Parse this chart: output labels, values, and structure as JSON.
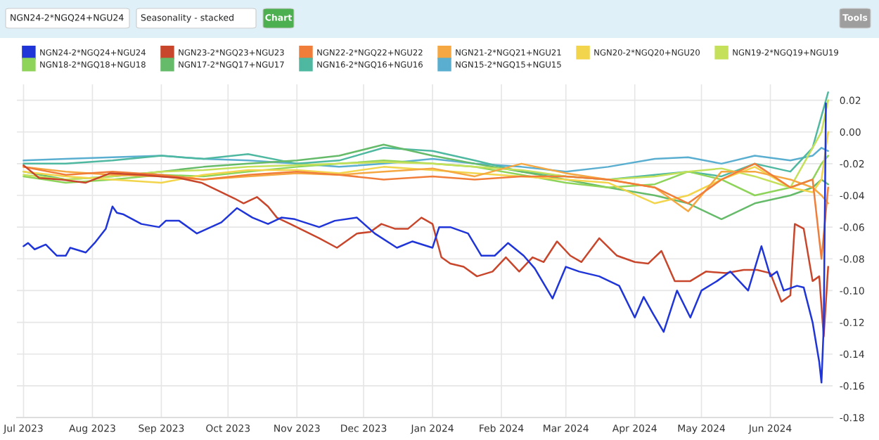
{
  "chart_data": {
    "type": "line",
    "annotations": [
      "NGN24-2*NGQ24+NGU24",
      "Seasonality - stacked",
      "Chart",
      "Tools"
    ],
    "x": [
      "2023-07-01",
      "2023-07-20",
      "2023-08-10",
      "2023-09-01",
      "2023-09-20",
      "2023-10-10",
      "2023-11-01",
      "2023-11-20",
      "2023-12-10",
      "2024-01-01",
      "2024-01-20",
      "2024-02-10",
      "2024-03-01",
      "2024-03-20",
      "2024-04-10",
      "2024-04-25",
      "2024-05-10",
      "2024-05-25",
      "2024-06-10",
      "2024-06-20",
      "2024-06-24",
      "2024-06-27"
    ],
    "series": [
      {
        "name": "NGN24-2*NGQ24+NGU24",
        "color": "#1f35d8",
        "x": [
          "2023-07-01",
          "2023-07-03",
          "2023-07-06",
          "2023-07-11",
          "2023-07-16",
          "2023-07-20",
          "2023-07-22",
          "2023-07-29",
          "2023-08-02",
          "2023-08-07",
          "2023-08-10",
          "2023-08-12",
          "2023-08-15",
          "2023-08-23",
          "2023-08-31",
          "2023-09-03",
          "2023-09-09",
          "2023-09-17",
          "2023-09-28",
          "2023-10-05",
          "2023-10-12",
          "2023-10-19",
          "2023-10-25",
          "2023-10-31",
          "2023-11-11",
          "2023-11-18",
          "2023-11-28",
          "2023-12-06",
          "2023-12-16",
          "2023-12-23",
          "2024-01-01",
          "2024-01-04",
          "2024-01-09",
          "2024-01-17",
          "2024-01-23",
          "2024-01-29",
          "2024-02-04",
          "2024-02-11",
          "2024-02-16",
          "2024-02-24",
          "2024-03-01",
          "2024-03-07",
          "2024-03-16",
          "2024-03-25",
          "2024-04-01",
          "2024-04-05",
          "2024-04-09",
          "2024-04-14",
          "2024-04-20",
          "2024-04-26",
          "2024-05-01",
          "2024-05-08",
          "2024-05-14",
          "2024-05-22",
          "2024-05-28",
          "2024-06-01",
          "2024-06-04",
          "2024-06-07",
          "2024-06-13",
          "2024-06-16",
          "2024-06-20",
          "2024-06-23",
          "2024-06-24",
          "2024-06-25",
          "2024-06-26"
        ],
        "values": [
          -0.072,
          -0.07,
          -0.074,
          -0.071,
          -0.078,
          -0.078,
          -0.073,
          -0.076,
          -0.07,
          -0.061,
          -0.047,
          -0.051,
          -0.052,
          -0.058,
          -0.06,
          -0.056,
          -0.056,
          -0.064,
          -0.057,
          -0.048,
          -0.054,
          -0.058,
          -0.054,
          -0.055,
          -0.06,
          -0.056,
          -0.054,
          -0.064,
          -0.073,
          -0.069,
          -0.073,
          -0.06,
          -0.06,
          -0.064,
          -0.078,
          -0.078,
          -0.07,
          -0.078,
          -0.086,
          -0.105,
          -0.085,
          -0.088,
          -0.091,
          -0.097,
          -0.117,
          -0.104,
          -0.114,
          -0.126,
          -0.1,
          -0.117,
          -0.1,
          -0.094,
          -0.088,
          -0.1,
          -0.072,
          -0.091,
          -0.088,
          -0.1,
          -0.097,
          -0.098,
          -0.12,
          -0.145,
          -0.158,
          -0.123,
          0.018
        ]
      },
      {
        "name": "NGN23-2*NGQ23+NGU23",
        "color": "#c8462b",
        "x": [
          "2023-07-01",
          "2023-07-08",
          "2023-07-18",
          "2023-07-29",
          "2023-08-09",
          "2023-08-23",
          "2023-09-09",
          "2023-09-19",
          "2023-09-25",
          "2023-10-04",
          "2023-10-08",
          "2023-10-14",
          "2023-10-19",
          "2023-10-23",
          "2023-10-29",
          "2023-11-11",
          "2023-11-19",
          "2023-11-28",
          "2023-12-04",
          "2023-12-09",
          "2023-12-15",
          "2023-12-21",
          "2023-12-27",
          "2024-01-01",
          "2024-01-05",
          "2024-01-09",
          "2024-01-15",
          "2024-01-21",
          "2024-01-28",
          "2024-02-03",
          "2024-02-09",
          "2024-02-15",
          "2024-02-20",
          "2024-02-26",
          "2024-03-03",
          "2024-03-08",
          "2024-03-16",
          "2024-03-24",
          "2024-04-01",
          "2024-04-07",
          "2024-04-13",
          "2024-04-19",
          "2024-04-26",
          "2024-05-03",
          "2024-05-12",
          "2024-05-20",
          "2024-05-26",
          "2024-06-01",
          "2024-06-06",
          "2024-06-10",
          "2024-06-12",
          "2024-06-16",
          "2024-06-20",
          "2024-06-23",
          "2024-06-25",
          "2024-06-27"
        ],
        "values": [
          -0.021,
          -0.029,
          -0.03,
          -0.032,
          -0.026,
          -0.027,
          -0.029,
          -0.032,
          -0.036,
          -0.042,
          -0.045,
          -0.041,
          -0.047,
          -0.054,
          -0.058,
          -0.067,
          -0.073,
          -0.064,
          -0.063,
          -0.058,
          -0.061,
          -0.061,
          -0.054,
          -0.058,
          -0.079,
          -0.083,
          -0.085,
          -0.091,
          -0.088,
          -0.079,
          -0.088,
          -0.079,
          -0.082,
          -0.069,
          -0.078,
          -0.082,
          -0.067,
          -0.078,
          -0.082,
          -0.083,
          -0.075,
          -0.094,
          -0.094,
          -0.088,
          -0.089,
          -0.087,
          -0.087,
          -0.089,
          -0.107,
          -0.103,
          -0.058,
          -0.061,
          -0.094,
          -0.091,
          -0.129,
          -0.085
        ]
      },
      {
        "name": "NGN22-2*NGQ22+NGU22",
        "color": "#f07d3a",
        "values": [
          -0.022,
          -0.027,
          -0.025,
          -0.027,
          -0.03,
          -0.027,
          -0.025,
          -0.027,
          -0.03,
          -0.028,
          -0.03,
          -0.028,
          -0.028,
          -0.03,
          -0.035,
          -0.045,
          -0.03,
          -0.02,
          -0.035,
          -0.03,
          -0.08,
          -0.035
        ]
      },
      {
        "name": "NGN21-2*NGQ21+NGU21",
        "color": "#f5a742",
        "values": [
          -0.022,
          -0.025,
          -0.027,
          -0.028,
          -0.03,
          -0.028,
          -0.026,
          -0.027,
          -0.025,
          -0.023,
          -0.028,
          -0.02,
          -0.026,
          -0.03,
          -0.035,
          -0.05,
          -0.025,
          -0.025,
          -0.03,
          -0.035,
          -0.04,
          -0.045
        ]
      },
      {
        "name": "NGN20-2*NGQ20+NGU20",
        "color": "#f2d54c",
        "values": [
          -0.025,
          -0.028,
          -0.03,
          -0.032,
          -0.027,
          -0.024,
          -0.024,
          -0.026,
          -0.022,
          -0.024,
          -0.026,
          -0.028,
          -0.03,
          -0.032,
          -0.045,
          -0.04,
          -0.03,
          -0.022,
          -0.035,
          -0.038,
          -0.03,
          0.0
        ]
      },
      {
        "name": "NGN19-2*NGQ19+NGU19",
        "color": "#c5e05a",
        "values": [
          -0.027,
          -0.03,
          -0.028,
          -0.025,
          -0.024,
          -0.022,
          -0.021,
          -0.02,
          -0.019,
          -0.02,
          -0.022,
          -0.024,
          -0.028,
          -0.03,
          -0.028,
          -0.025,
          -0.023,
          -0.028,
          -0.035,
          -0.01,
          0.0,
          0.02
        ]
      },
      {
        "name": "NGN18-2*NGQ18+NGU18",
        "color": "#8fd45a",
        "values": [
          -0.028,
          -0.032,
          -0.03,
          -0.027,
          -0.028,
          -0.025,
          -0.022,
          -0.02,
          -0.018,
          -0.02,
          -0.022,
          -0.027,
          -0.032,
          -0.035,
          -0.033,
          -0.025,
          -0.03,
          -0.04,
          -0.035,
          -0.03,
          -0.02,
          -0.015
        ]
      },
      {
        "name": "NGN17-2*NGQ17+NGU17",
        "color": "#66bb6a",
        "values": [
          -0.025,
          -0.03,
          -0.028,
          -0.025,
          -0.022,
          -0.02,
          -0.018,
          -0.015,
          -0.008,
          -0.015,
          -0.02,
          -0.025,
          -0.03,
          -0.035,
          -0.04,
          -0.045,
          -0.055,
          -0.045,
          -0.04,
          -0.035,
          -0.03,
          -0.033
        ]
      },
      {
        "name": "NGN16-2*NGQ16+NGU16",
        "color": "#4fb8a0",
        "values": [
          -0.02,
          -0.02,
          -0.018,
          -0.015,
          -0.017,
          -0.014,
          -0.02,
          -0.018,
          -0.01,
          -0.012,
          -0.018,
          -0.025,
          -0.028,
          -0.03,
          -0.027,
          -0.025,
          -0.028,
          -0.02,
          -0.025,
          -0.01,
          0.01,
          0.025
        ]
      },
      {
        "name": "NGN15-2*NGQ15+NGU15",
        "color": "#5aaed0",
        "values": [
          -0.018,
          -0.017,
          -0.016,
          -0.015,
          -0.017,
          -0.018,
          -0.02,
          -0.022,
          -0.02,
          -0.017,
          -0.02,
          -0.022,
          -0.025,
          -0.022,
          -0.017,
          -0.016,
          -0.02,
          -0.015,
          -0.018,
          -0.015,
          -0.01,
          -0.012
        ]
      }
    ],
    "xlim": [
      "2023-06-28",
      "2024-06-29"
    ],
    "xticks": [
      {
        "value": "2023-07-01",
        "label": "Jul 2023"
      },
      {
        "value": "2023-08-01",
        "label": "Aug 2023"
      },
      {
        "value": "2023-09-01",
        "label": "Sep 2023"
      },
      {
        "value": "2023-10-01",
        "label": "Oct 2023"
      },
      {
        "value": "2023-11-01",
        "label": "Nov 2023"
      },
      {
        "value": "2023-12-01",
        "label": "Dec 2023"
      },
      {
        "value": "2024-01-01",
        "label": "Jan 2024"
      },
      {
        "value": "2024-02-01",
        "label": "Feb 2024"
      },
      {
        "value": "2024-03-01",
        "label": "Mar 2024"
      },
      {
        "value": "2024-04-01",
        "label": "Apr 2024"
      },
      {
        "value": "2024-05-01",
        "label": "May 2024"
      },
      {
        "value": "2024-06-01",
        "label": "Jun 2024"
      }
    ],
    "ylim": [
      -0.18,
      0.03
    ],
    "yticks": [
      0.02,
      {
        "value": 0,
        "label": "0.00"
      },
      -0.02,
      -0.04,
      -0.06,
      -0.08,
      {
        "value": -0.1,
        "label": "-0.10"
      },
      -0.12,
      -0.14,
      -0.16,
      -0.18
    ],
    "grid": true,
    "legend": "top",
    "marker": "none",
    "line_style": "solid"
  }
}
